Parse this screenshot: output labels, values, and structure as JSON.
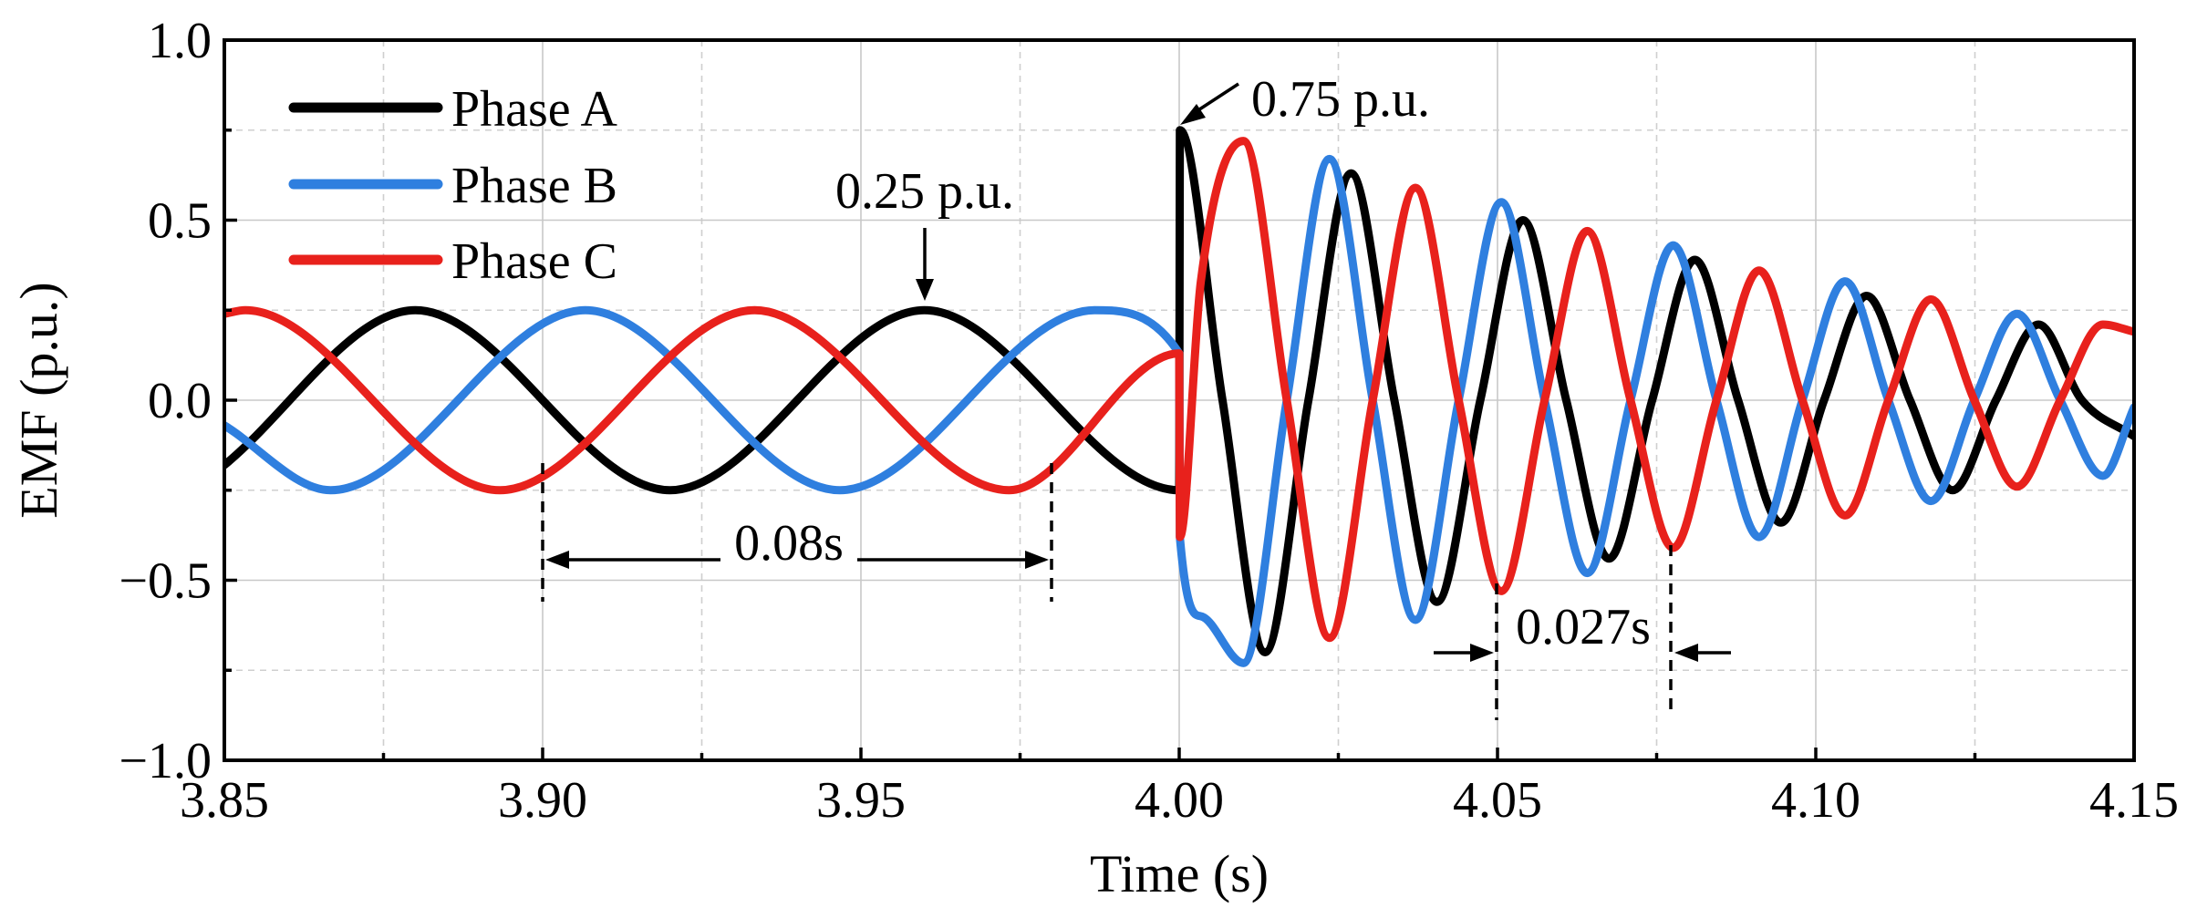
{
  "chart_data": {
    "type": "line",
    "title": "",
    "xlabel": "Time (s)",
    "ylabel": "EMF (p.u.)",
    "xlim": [
      3.85,
      4.15
    ],
    "ylim": [
      -1.0,
      1.0
    ],
    "xticks": [
      3.85,
      3.9,
      3.95,
      4.0,
      4.05,
      4.1,
      4.15
    ],
    "xtick_labels": [
      "3.85",
      "3.90",
      "3.95",
      "4.00",
      "4.05",
      "4.10",
      "4.15"
    ],
    "yticks": [
      -1.0,
      -0.5,
      0.0,
      0.5,
      1.0
    ],
    "ytick_labels": [
      "−1.0",
      "−0.5",
      "0.0",
      "0.5",
      "1.0"
    ],
    "grid": true,
    "legend_position": "top-left",
    "series": [
      {
        "name": "Phase A",
        "color": "#000000",
        "x": [
          3.85,
          3.88,
          3.92,
          3.96,
          4.0,
          4.0001,
          4.0068,
          4.0135,
          4.0203,
          4.027,
          4.0338,
          4.0405,
          4.0473,
          4.054,
          4.0608,
          4.0675,
          4.0743,
          4.081,
          4.0878,
          4.0945,
          4.1013,
          4.108,
          4.1148,
          4.1215,
          4.1283,
          4.135,
          4.1418,
          4.15
        ],
        "y": [
          -0.18,
          0.25,
          -0.25,
          0.25,
          -0.25,
          0.75,
          0.0,
          -0.7,
          0.0,
          0.63,
          0.0,
          -0.56,
          0.0,
          0.5,
          0.0,
          -0.44,
          0.0,
          0.39,
          0.0,
          -0.34,
          0.0,
          0.29,
          0.0,
          -0.25,
          0.0,
          0.21,
          0.0,
          -0.1
        ]
      },
      {
        "name": "Phase B",
        "color": "#2F7FDF",
        "x": [
          3.85,
          3.8667,
          3.9067,
          3.9467,
          3.9867,
          4.0,
          4.0001,
          4.0034,
          4.0101,
          4.0169,
          4.0236,
          4.0304,
          4.0371,
          4.0439,
          4.0506,
          4.0574,
          4.0641,
          4.0709,
          4.0776,
          4.0844,
          4.0911,
          4.0979,
          4.1046,
          4.1114,
          4.1181,
          4.1249,
          4.1316,
          4.1384,
          4.1451,
          4.15
        ],
        "y": [
          -0.07,
          -0.25,
          0.25,
          -0.25,
          0.25,
          0.13,
          -0.38,
          -0.6,
          -0.73,
          0.0,
          0.67,
          0.0,
          -0.61,
          0.0,
          0.55,
          0.0,
          -0.48,
          0.0,
          0.43,
          0.0,
          -0.38,
          0.0,
          0.33,
          0.0,
          -0.28,
          0.0,
          0.24,
          0.0,
          -0.21,
          -0.02
        ]
      },
      {
        "name": "Phase C",
        "color": "#E8211C",
        "x": [
          3.85,
          3.8533,
          3.8933,
          3.9333,
          3.9733,
          4.0,
          4.0001,
          4.0034,
          4.0101,
          4.0169,
          4.0236,
          4.0304,
          4.0371,
          4.0439,
          4.0506,
          4.0574,
          4.0641,
          4.0709,
          4.0776,
          4.0844,
          4.0911,
          4.0979,
          4.1046,
          4.1114,
          4.1181,
          4.1249,
          4.1316,
          4.1384,
          4.1451,
          4.15
        ],
        "y": [
          0.24,
          0.25,
          -0.25,
          0.25,
          -0.25,
          0.13,
          -0.38,
          0.33,
          0.72,
          0.0,
          -0.66,
          0.0,
          0.59,
          0.0,
          -0.53,
          0.0,
          0.47,
          0.0,
          -0.41,
          0.0,
          0.36,
          0.0,
          -0.32,
          0.0,
          0.28,
          0.0,
          -0.24,
          0.0,
          0.21,
          0.19
        ]
      }
    ],
    "annotations": [
      {
        "text": "0.75 p.u."
      },
      {
        "text": "0.25 p.u."
      },
      {
        "text": "0.08s"
      },
      {
        "text": "0.027s"
      }
    ]
  }
}
